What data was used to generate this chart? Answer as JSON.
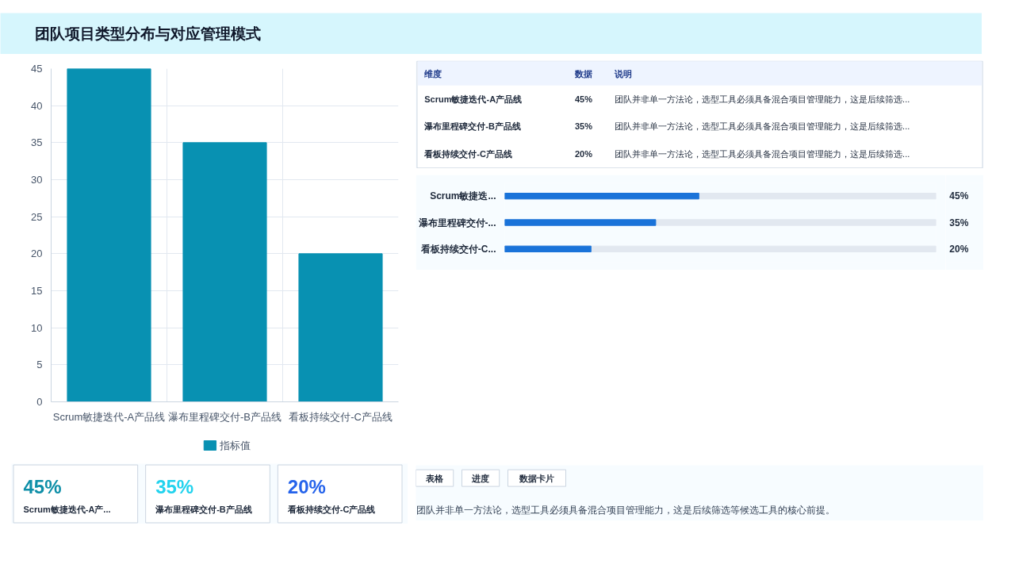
{
  "chart_data": [
    {
      "type": "bar",
      "title": "团队项目类型分布与对应管理模式",
      "categories": [
        "Scrum敏捷迭代-A产品线",
        "瀑布里程碑交付-B产品线",
        "看板持续交付-C产品线"
      ],
      "series": [
        {
          "name": "指标值",
          "color": "#0891b2",
          "values": [
            45,
            35,
            20
          ]
        }
      ],
      "ylim": [
        0,
        45
      ],
      "yticks": [
        0,
        5,
        10,
        15,
        20,
        25,
        30,
        35,
        40,
        45
      ],
      "grid": true,
      "legend": "bottom"
    },
    {
      "type": "bar",
      "orientation": "horizontal",
      "categories": [
        "Scrum敏捷迭...",
        "瀑布里程碑交付-...",
        "看板持续交付-C..."
      ],
      "values": [
        45,
        35,
        20
      ],
      "value_labels": [
        "45%",
        "35%",
        "20%"
      ],
      "color": "#1a73d9",
      "xlim": [
        0,
        100
      ],
      "tick_labels": "y"
    },
    {
      "type": "other",
      "categories": [
        "维度",
        "数据",
        "说明"
      ],
      "annotations": [
        "Scrum敏捷迭代-A产品线",
        "45%",
        "团队并非单一方法论，选型工具必须具备混合项目管理能力，这是后续筛选...",
        "瀑布里程碑交付-B产品线",
        "35%",
        "团队并非单一方法论，选型工具必须具备混合项目管理能力，这是后续筛选...",
        "看板持续交付-C产品线",
        "20%",
        "团队并非单一方法论，选型工具必须具备混合项目管理能力，这是后续筛选..."
      ]
    },
    {
      "type": "other",
      "colors": [
        "#0e8fa8",
        "#22d3ee",
        "#2563eb"
      ],
      "annotations": [
        "45%",
        "Scrum敏捷迭代-A产...",
        "35%",
        "瀑布里程碑交付-B产品线",
        "20%",
        "看板持续交付-C产品线"
      ]
    },
    {
      "type": "other",
      "annotations": [
        "表格",
        "进度",
        "数据卡片",
        "团队并非单一方法论，选型工具必须具备混合项目管理能力，这是后续筛选等候选工具的核心前提。"
      ]
    }
  ]
}
